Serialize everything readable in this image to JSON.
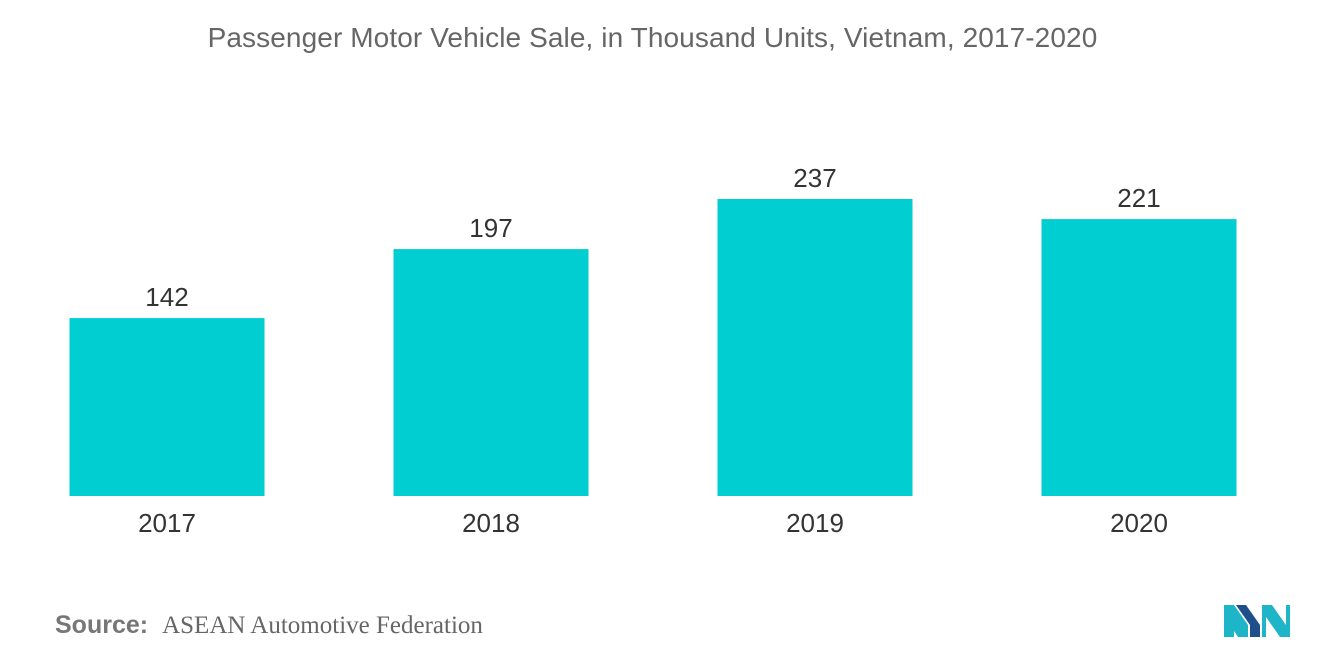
{
  "chart_data": {
    "type": "bar",
    "title": "Passenger Motor Vehicle Sale, in Thousand Units, Vietnam, 2017-2020",
    "xlabel": "",
    "ylabel": "",
    "categories": [
      "2017",
      "2018",
      "2019",
      "2020"
    ],
    "values": [
      142,
      197,
      237,
      221
    ],
    "ylim": [
      0,
      237
    ],
    "grid": false,
    "legend": "none",
    "bar_color": "#00CED1"
  },
  "source": {
    "prefix": "Source:",
    "text": "ASEAN Automotive Federation"
  },
  "logo": {
    "icon": "mordor-intelligence-logo-icon",
    "colors": [
      "#1FB5C9",
      "#1F4F8A"
    ]
  }
}
